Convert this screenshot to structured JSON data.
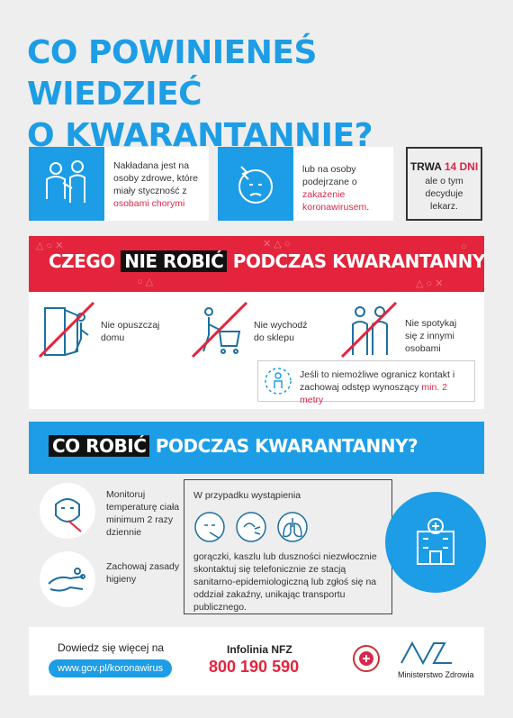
{
  "title": {
    "line1": "CO POWINIENEŚ WIEDZIEĆ",
    "line2": "O KWARANTANNIE?"
  },
  "info": {
    "card1": {
      "prefix": "Nakładana jest na osoby zdrowe, które miały styczność z ",
      "highlight": "osobami chorymi"
    },
    "card2": {
      "prefix": "lub na osoby podejrzane o ",
      "highlight": "zakażenie koronawirusem",
      "suffix": "."
    },
    "card3": {
      "trwa": "TRWA",
      "days": "14 DNI",
      "rest": "ale o tym decyduje lekarz."
    }
  },
  "dont": {
    "title_pre": "CZEGO",
    "title_hl": "NIE ROBIĆ",
    "title_post": "PODCZAS KWARANTANNY?",
    "items": [
      "Nie opuszczaj domu",
      "Nie wychodź do sklepu",
      "Nie spotykaj się z innymi osobami"
    ],
    "note_prefix": "Jeśli to niemożliwe ogranicz kontakt i zachowaj odstęp wynoszący ",
    "note_highlight": "min. 2 metry"
  },
  "do": {
    "title_hl": "CO ROBIĆ",
    "title_post": "PODCZAS KWARANTANNY?",
    "items": [
      "Monitoruj temperaturę ciała minimum 2 razy dziennie",
      "Zachowaj zasady higieny"
    ],
    "symptoms_intro": "W przypadku wystąpienia",
    "symptoms_text": "gorączki, kaszlu lub duszności niezwłocznie skontaktuj się telefonicznie ze stacją sanitarno-epidemiologiczną lub zgłoś się na oddział zakaźny, unikając transportu publicznego."
  },
  "footer": {
    "more": "Dowiedz się więcej na",
    "link": "www.gov.pl/koronawirus",
    "infolinia_label": "Infolinia NFZ",
    "phone": "800 190 590",
    "ministry": "Ministerstwo Zdrowia"
  },
  "colors": {
    "blue": "#1d9de5",
    "red": "#e3243c",
    "dark": "#111111"
  }
}
